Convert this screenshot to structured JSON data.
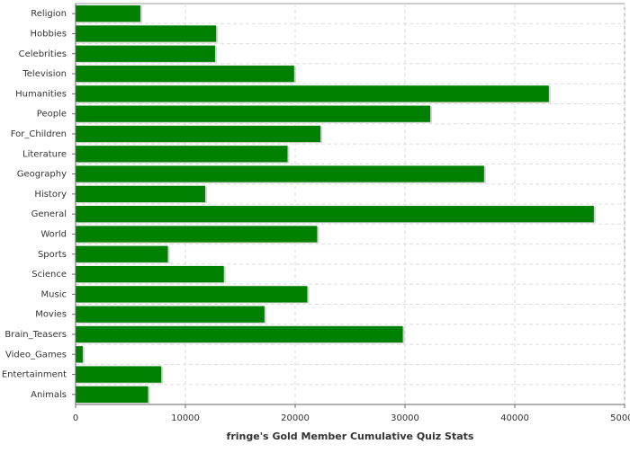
{
  "chart_data": {
    "type": "bar",
    "orientation": "horizontal",
    "x_label": "fringe's Gold Member Cumulative Quiz Stats",
    "categories": [
      "Religion",
      "Hobbies",
      "Celebrities",
      "Television",
      "Humanities",
      "People",
      "For_Children",
      "Literature",
      "Geography",
      "History",
      "General",
      "World",
      "Sports",
      "Science",
      "Music",
      "Movies",
      "Brain_Teasers",
      "Video_Games",
      "Entertainment",
      "Animals"
    ],
    "values": [
      5900,
      12800,
      12700,
      19900,
      43100,
      32300,
      22300,
      19300,
      37200,
      11800,
      47200,
      22000,
      8400,
      13500,
      21100,
      17200,
      29800,
      650,
      7800,
      6600
    ],
    "color": "#008000",
    "xlim": [
      0,
      50000
    ],
    "xticks": [
      0,
      10000,
      20000,
      30000,
      40000,
      50000
    ],
    "grid": true
  }
}
